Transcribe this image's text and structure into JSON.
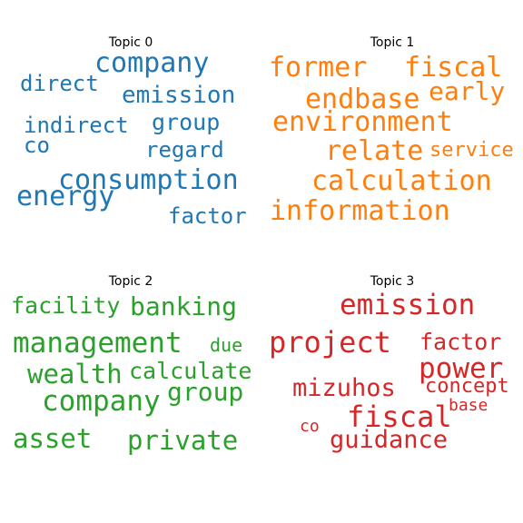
{
  "chart_data": {
    "type": "wordcloud",
    "panels": [
      {
        "title": "Topic 0",
        "color": "#1f77b4",
        "words": [
          "company",
          "emission",
          "direct",
          "indirect",
          "group",
          "co",
          "regard",
          "consumption",
          "energy",
          "factor"
        ]
      },
      {
        "title": "Topic 1",
        "color": "#ff7f0e",
        "words": [
          "former",
          "fiscal",
          "endbase",
          "early",
          "environment",
          "relate",
          "service",
          "calculation",
          "information"
        ]
      },
      {
        "title": "Topic 2",
        "color": "#2ca02c",
        "words": [
          "facility",
          "banking",
          "management",
          "due",
          "wealth",
          "calculate",
          "group",
          "company",
          "asset",
          "private"
        ]
      },
      {
        "title": "Topic 3",
        "color": "#d62728",
        "words": [
          "emission",
          "project",
          "factor",
          "power",
          "mizuhos",
          "concept",
          "fiscal",
          "base",
          "co",
          "guidance"
        ]
      }
    ]
  }
}
